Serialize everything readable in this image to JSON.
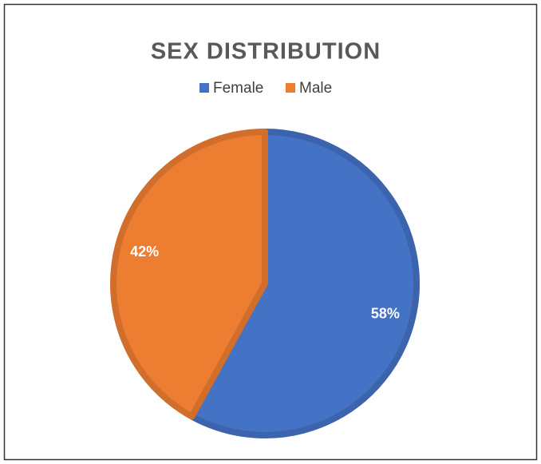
{
  "chart_data": {
    "type": "pie",
    "title": "SEX DISTRIBUTION",
    "categories": [
      "Female",
      "Male"
    ],
    "values": [
      58,
      42
    ],
    "value_labels": [
      "58%",
      "42%"
    ],
    "colors": [
      "#4472c4",
      "#ed7d31"
    ],
    "legend": "top"
  }
}
